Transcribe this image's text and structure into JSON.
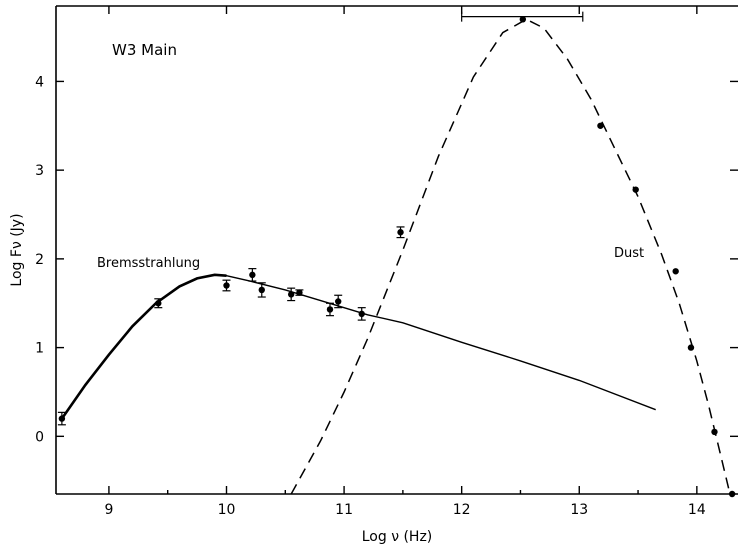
{
  "chart_data": {
    "type": "scatter",
    "title": "W3 Main",
    "xlabel": "Log ν (Hz)",
    "ylabel": "Log Fν (Jy)",
    "xlim": [
      8.55,
      14.35
    ],
    "ylim": [
      -0.65,
      4.85
    ],
    "xticks": [
      "9",
      "10",
      "11",
      "12",
      "13",
      "14"
    ],
    "yticks": [
      "0",
      "1",
      "2",
      "3",
      "4"
    ],
    "grid": false,
    "annotations": [
      "Bremsstrahlung",
      "Dust"
    ],
    "series": [
      {
        "name": "Bremsstrahlung",
        "style": "solid",
        "x": [
          8.6,
          8.8,
          9.0,
          9.2,
          9.4,
          9.6,
          9.75,
          9.9,
          10.0,
          10.2,
          10.5,
          10.8,
          11.0,
          11.2,
          11.5,
          12.0,
          12.5,
          13.0,
          13.65
        ],
        "y": [
          0.2,
          0.58,
          0.92,
          1.24,
          1.5,
          1.69,
          1.78,
          1.82,
          1.81,
          1.75,
          1.65,
          1.53,
          1.45,
          1.37,
          1.28,
          1.06,
          0.85,
          0.63,
          0.3
        ]
      },
      {
        "name": "Dust",
        "style": "dashed",
        "x": [
          10.55,
          10.8,
          11.0,
          11.2,
          11.5,
          11.8,
          12.1,
          12.35,
          12.55,
          12.7,
          12.9,
          13.1,
          13.3,
          13.5,
          13.7,
          13.85,
          14.0,
          14.1,
          14.2,
          14.3
        ],
        "y": [
          -0.65,
          -0.05,
          0.5,
          1.1,
          2.1,
          3.15,
          4.05,
          4.55,
          4.7,
          4.6,
          4.25,
          3.8,
          3.25,
          2.7,
          2.05,
          1.5,
          0.85,
          0.35,
          -0.2,
          -0.75
        ]
      },
      {
        "name": "Data",
        "style": "points",
        "x": [
          8.6,
          9.42,
          10.0,
          10.22,
          10.3,
          10.55,
          10.62,
          10.88,
          10.95,
          11.15,
          11.48,
          12.52,
          13.18,
          13.48,
          13.82,
          13.95,
          14.15,
          14.3
        ],
        "y": [
          0.2,
          1.5,
          1.7,
          1.82,
          1.65,
          1.6,
          1.62,
          1.43,
          1.52,
          1.38,
          2.3,
          4.7,
          3.5,
          2.78,
          1.86,
          1.0,
          0.05,
          -0.65
        ],
        "yerr": [
          0.07,
          0.05,
          0.06,
          0.07,
          0.08,
          0.07,
          0.03,
          0.07,
          0.07,
          0.07,
          0.06,
          0,
          0,
          0,
          0,
          0,
          0,
          0
        ]
      }
    ],
    "xerrbar": {
      "x_from": 12.0,
      "x_to": 13.03,
      "y": 4.73
    }
  }
}
